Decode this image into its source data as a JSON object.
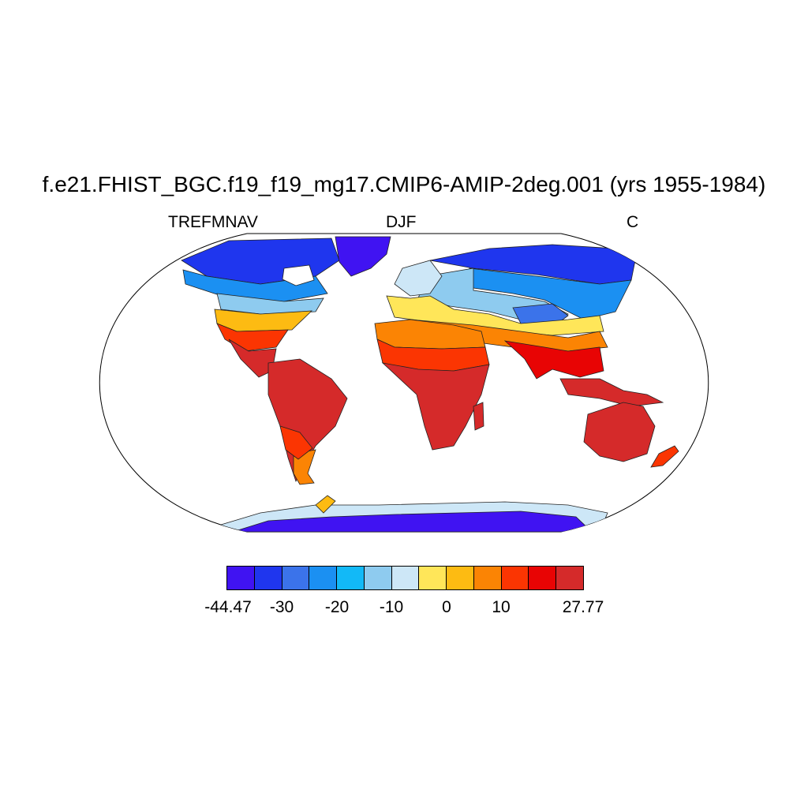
{
  "title": "f.e21.FHIST_BGC.f19_f19_mg17.CMIP6-AMIP-2deg.001 (yrs 1955-1984)",
  "subtitle_left": "TREFMNAV",
  "subtitle_center": "DJF",
  "subtitle_right": "C",
  "colorbar": {
    "colors": [
      "#4013f2",
      "#1f36ee",
      "#3b73ea",
      "#1b90f2",
      "#12b9f7",
      "#8ecbef",
      "#cde7f7",
      "#ffe659",
      "#fdbb12",
      "#fb8404",
      "#fb3502",
      "#e80404",
      "#d52a2a"
    ],
    "tick_labels": [
      "-44.47",
      "-30",
      "-20",
      "-10",
      "0",
      "10",
      "27.77"
    ]
  },
  "chart_data": {
    "type": "heatmap",
    "title": "f.e21.FHIST_BGC.f19_f19_mg17.CMIP6-AMIP-2deg.001 (yrs 1955-1984)",
    "variable": "TREFMNAV",
    "season": "DJF",
    "units": "C",
    "projection": "Robinson",
    "range": [
      -44.47,
      27.77
    ],
    "levels": [
      -44.47,
      -30,
      -20,
      -10,
      0,
      10,
      27.77
    ]
  }
}
